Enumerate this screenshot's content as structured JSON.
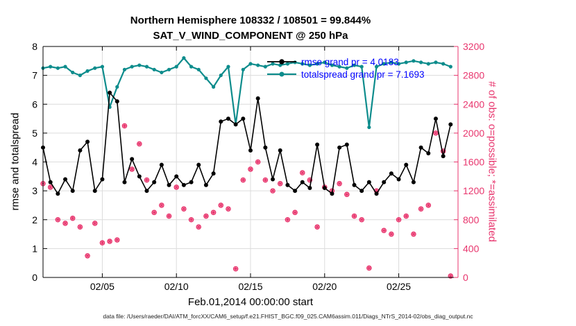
{
  "figure": {
    "title_line1": "Northern Hemisphere 108332 / 108501 = 99.844%",
    "title_line2": "SAT_V_WIND_COMPONENT @ 250 hPa",
    "footer": "data file: /Users/raeder/DAI/ATM_forcXX/CAM6_setup/f.e21.FHIST_BGC.f09_025.CAM6assim.011/Diags_NTrS_2014-02/obs_diag_output.nc"
  },
  "colors": {
    "rmse": "#000000",
    "totalspread": "#0d8c8c",
    "obs": "#e8356d",
    "legend_text": "#0000ff",
    "grid": "#dcdcdc",
    "axis": "#000000"
  },
  "chart_data": {
    "type": "line",
    "title": "Northern Hemisphere 108332 / 108501 = 99.844% | SAT_V_WIND_COMPONENT @ 250 hPa",
    "xlabel": "Feb.01,2014 00:00:00 start",
    "ylabel_left": "rmse and totalspread",
    "ylabel_right": "# of obs: o=possible; *=assimilated",
    "xlim": [
      1,
      29
    ],
    "ylim_left": [
      0,
      8
    ],
    "ylim_right": [
      0,
      3200
    ],
    "grid": true,
    "xticks": [
      {
        "v": 5,
        "label": "02/05"
      },
      {
        "v": 10,
        "label": "02/10"
      },
      {
        "v": 15,
        "label": "02/15"
      },
      {
        "v": 20,
        "label": "02/20"
      },
      {
        "v": 25,
        "label": "02/25"
      }
    ],
    "yticks_left": [
      0,
      1,
      2,
      3,
      4,
      5,
      6,
      7,
      8
    ],
    "yticks_right": [
      0,
      400,
      800,
      1200,
      1600,
      2000,
      2400,
      2800,
      3200
    ],
    "legend": [
      {
        "label": "rmse grand pr = 4.0183",
        "series": "rmse"
      },
      {
        "label": "totalspread grand pr = 7.1693",
        "series": "totalspread"
      }
    ],
    "x": [
      1,
      1.5,
      2,
      2.5,
      3,
      3.5,
      4,
      4.5,
      5,
      5.5,
      6,
      6.5,
      7,
      7.5,
      8,
      8.5,
      9,
      9.5,
      10,
      10.5,
      11,
      11.5,
      12,
      12.5,
      13,
      13.5,
      14,
      14.5,
      15,
      15.5,
      16,
      16.5,
      17,
      17.5,
      18,
      18.5,
      19,
      19.5,
      20,
      20.5,
      21,
      21.5,
      22,
      22.5,
      23,
      23.5,
      24,
      24.5,
      25,
      25.5,
      26,
      26.5,
      27,
      27.5,
      28,
      28.5
    ],
    "series": [
      {
        "name": "obs_possible",
        "axis": "right",
        "color": "#e8356d",
        "marker": "circle",
        "values": [
          1300,
          1250,
          800,
          750,
          820,
          700,
          300,
          750,
          480,
          500,
          520,
          2100,
          1500,
          1850,
          1350,
          900,
          1000,
          850,
          1250,
          950,
          800,
          700,
          850,
          900,
          1000,
          950,
          120,
          1350,
          1500,
          1600,
          1350,
          1200,
          1300,
          800,
          900,
          1450,
          1350,
          700,
          1250,
          1200,
          1300,
          1150,
          850,
          800,
          130,
          1200,
          650,
          600,
          800,
          850,
          600,
          950,
          1000,
          2000,
          1750,
          20
        ]
      },
      {
        "name": "obs_assimilated",
        "axis": "right",
        "color": "#e8356d",
        "marker": "asterisk",
        "values": [
          1300,
          1250,
          800,
          750,
          820,
          700,
          300,
          750,
          480,
          500,
          520,
          2100,
          1500,
          1850,
          1350,
          900,
          1000,
          850,
          1250,
          950,
          800,
          700,
          850,
          900,
          1000,
          950,
          120,
          1350,
          1500,
          1600,
          1350,
          1200,
          1300,
          800,
          900,
          1450,
          1350,
          700,
          1250,
          1200,
          1300,
          1150,
          850,
          800,
          130,
          1200,
          650,
          600,
          800,
          850,
          600,
          950,
          1000,
          2000,
          1750,
          20
        ]
      },
      {
        "name": "totalspread",
        "axis": "left",
        "color": "#0d8c8c",
        "marker": "dot",
        "values": [
          7.25,
          7.3,
          7.25,
          7.3,
          7.1,
          7.0,
          7.15,
          7.25,
          7.3,
          5.9,
          6.6,
          7.2,
          7.3,
          7.35,
          7.3,
          7.2,
          7.1,
          7.2,
          7.3,
          7.6,
          7.3,
          7.2,
          6.9,
          6.6,
          7.0,
          7.3,
          5.3,
          7.2,
          7.4,
          7.35,
          7.3,
          7.4,
          7.35,
          7.4,
          7.45,
          7.4,
          7.35,
          7.4,
          7.45,
          7.35,
          7.3,
          7.25,
          7.35,
          7.3,
          5.2,
          7.3,
          7.4,
          7.45,
          7.4,
          7.45,
          7.5,
          7.45,
          7.4,
          7.45,
          7.4,
          7.3
        ]
      },
      {
        "name": "rmse",
        "axis": "left",
        "color": "#000000",
        "marker": "dot",
        "values": [
          4.5,
          3.3,
          2.9,
          3.4,
          3.0,
          4.4,
          4.7,
          3.0,
          3.4,
          6.4,
          6.1,
          3.3,
          4.1,
          3.5,
          3.0,
          3.3,
          3.9,
          3.2,
          3.5,
          3.2,
          3.3,
          3.9,
          3.2,
          3.6,
          5.4,
          5.5,
          5.3,
          5.5,
          4.4,
          6.2,
          4.5,
          3.4,
          4.4,
          3.2,
          3.0,
          3.3,
          3.1,
          4.6,
          3.1,
          2.9,
          4.5,
          4.6,
          3.2,
          3.0,
          3.3,
          2.9,
          3.3,
          3.6,
          3.4,
          3.9,
          3.3,
          4.5,
          4.3,
          5.5,
          4.2,
          5.3
        ]
      }
    ]
  }
}
